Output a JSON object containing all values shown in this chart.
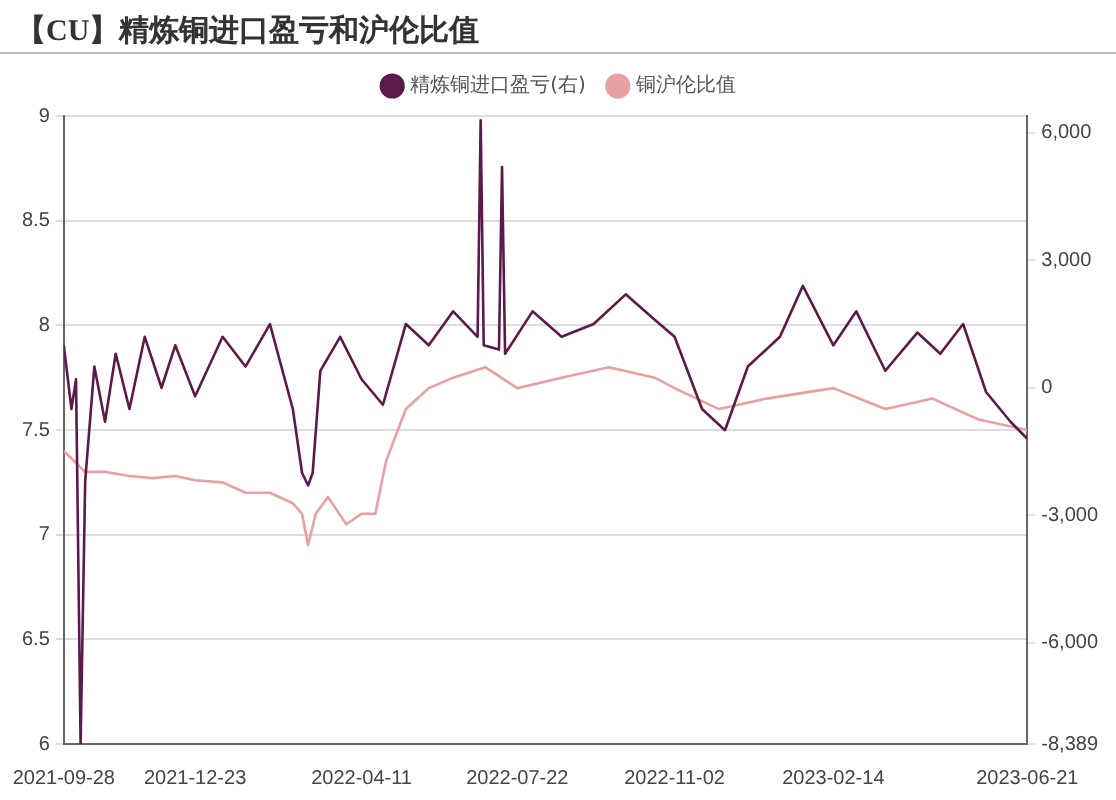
{
  "chart_data": {
    "type": "line",
    "title": "【CU】精炼铜进口盈亏和沪伦比值",
    "xlim": [
      "2021-09-28",
      "2023-06-21"
    ],
    "xticks": [
      "2021-09-28",
      "2021-12-23",
      "2022-04-11",
      "2022-07-22",
      "2022-11-02",
      "2023-02-14",
      "2023-06-21"
    ],
    "ylim": [
      6,
      9
    ],
    "yticks": [
      6,
      6.5,
      7,
      7.5,
      8,
      8.5,
      9
    ],
    "y2lim": [
      -8389,
      6400
    ],
    "y2ticks": [
      {
        "value": -8389,
        "label": "-8,389"
      },
      {
        "value": -6000,
        "label": "-6,000"
      },
      {
        "value": -3000,
        "label": "-3,000"
      },
      0,
      {
        "value": 3000,
        "label": "3,000"
      },
      {
        "value": 6000,
        "label": "6,000"
      }
    ],
    "grid": "y",
    "legend": "top",
    "marker": "none",
    "line_style": "solid",
    "series": [
      {
        "name": "精炼铜进口盈亏(右)",
        "color": "#5c1a4a",
        "axis": "y2",
        "x": [
          "2021-09-28",
          "2021-10-03",
          "2021-10-06",
          "2021-10-09",
          "2021-10-12",
          "2021-10-18",
          "2021-10-25",
          "2021-11-01",
          "2021-11-10",
          "2021-11-20",
          "2021-12-01",
          "2021-12-10",
          "2021-12-23",
          "2022-01-10",
          "2022-01-25",
          "2022-02-10",
          "2022-02-25",
          "2022-03-03",
          "2022-03-07",
          "2022-03-10",
          "2022-03-15",
          "2022-03-28",
          "2022-04-11",
          "2022-04-25",
          "2022-05-10",
          "2022-05-25",
          "2022-06-10",
          "2022-06-26",
          "2022-06-28",
          "2022-06-30",
          "2022-07-10",
          "2022-07-12",
          "2022-07-14",
          "2022-08-01",
          "2022-08-20",
          "2022-09-10",
          "2022-10-01",
          "2022-10-20",
          "2022-11-02",
          "2022-11-20",
          "2022-12-05",
          "2022-12-20",
          "2023-01-10",
          "2023-01-25",
          "2023-02-14",
          "2023-03-01",
          "2023-03-20",
          "2023-04-10",
          "2023-04-25",
          "2023-05-10",
          "2023-05-25",
          "2023-06-10",
          "2023-06-21"
        ],
        "values": [
          1000,
          -500,
          200,
          -8389,
          -2200,
          500,
          -800,
          800,
          -500,
          1200,
          0,
          1000,
          -200,
          1200,
          500,
          1500,
          -500,
          -2000,
          -2300,
          -2000,
          400,
          1200,
          200,
          -400,
          1500,
          1000,
          1800,
          1200,
          6300,
          1000,
          900,
          5200,
          800,
          1800,
          1200,
          1500,
          2200,
          1600,
          1200,
          -500,
          -1000,
          500,
          1200,
          2400,
          1000,
          1800,
          400,
          1300,
          800,
          1500,
          -100,
          -800,
          -1200
        ]
      },
      {
        "name": "铜沪伦比值",
        "color": "#e8a0a0",
        "x": [
          "2021-09-28",
          "2021-10-05",
          "2021-10-12",
          "2021-10-25",
          "2021-11-10",
          "2021-11-25",
          "2021-12-10",
          "2021-12-23",
          "2022-01-10",
          "2022-01-25",
          "2022-02-10",
          "2022-02-25",
          "2022-03-03",
          "2022-03-07",
          "2022-03-12",
          "2022-03-20",
          "2022-04-01",
          "2022-04-11",
          "2022-04-20",
          "2022-04-27",
          "2022-05-10",
          "2022-05-25",
          "2022-06-10",
          "2022-07-01",
          "2022-07-22",
          "2022-08-20",
          "2022-09-20",
          "2022-10-20",
          "2022-11-02",
          "2022-12-01",
          "2023-01-01",
          "2023-02-14",
          "2023-03-20",
          "2023-04-20",
          "2023-05-20",
          "2023-06-21"
        ],
        "values": [
          7.4,
          7.35,
          7.3,
          7.3,
          7.28,
          7.27,
          7.28,
          7.26,
          7.25,
          7.2,
          7.2,
          7.15,
          7.1,
          6.95,
          7.1,
          7.18,
          7.05,
          7.1,
          7.1,
          7.35,
          7.6,
          7.7,
          7.75,
          7.8,
          7.7,
          7.75,
          7.8,
          7.75,
          7.7,
          7.6,
          7.65,
          7.7,
          7.6,
          7.65,
          7.55,
          7.5
        ]
      }
    ]
  }
}
